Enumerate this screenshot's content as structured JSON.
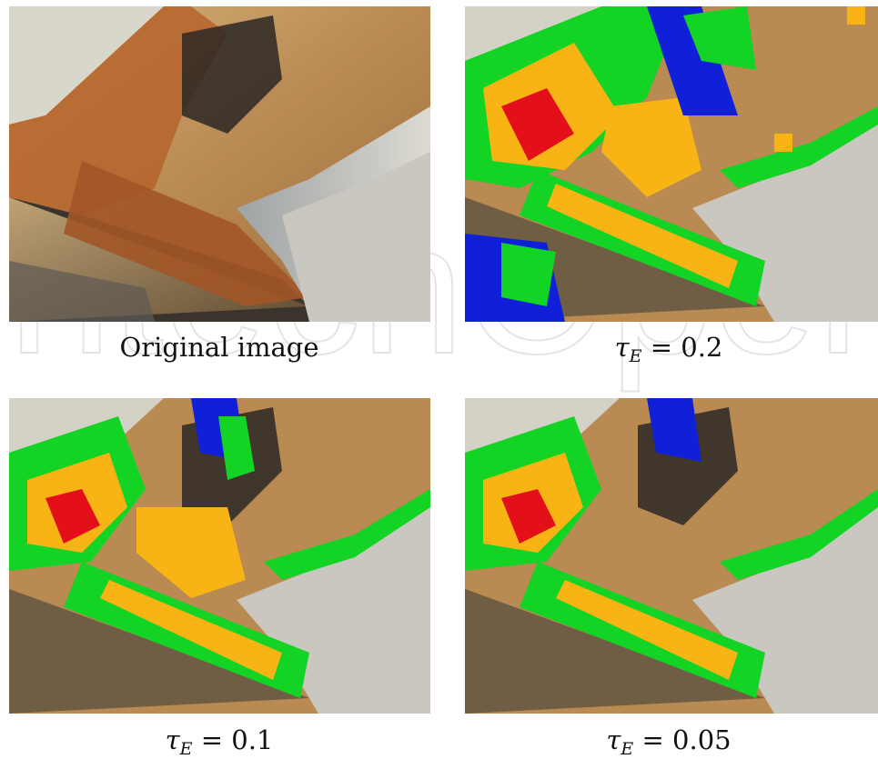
{
  "panels": [
    {
      "caption": "Original image",
      "kind": "original"
    },
    {
      "caption_symbol": "τ",
      "caption_sub": "E",
      "caption_rest": " = 0.2",
      "kind": "overlay"
    },
    {
      "caption_symbol": "τ",
      "caption_sub": "E",
      "caption_rest": " = 0.1",
      "kind": "overlay"
    },
    {
      "caption_symbol": "τ",
      "caption_sub": "E",
      "caption_rest": " = 0.05",
      "kind": "overlay"
    }
  ],
  "overlay_colors": {
    "high": "#e3101a",
    "mid_high": "#f8b414",
    "mid": "#13d324",
    "low": "#1020d8"
  },
  "image_colors": {
    "tan_surface": "#b98a52",
    "rust": "#b5642c",
    "grey_steel": "#c9c7c0",
    "dark_shadow": "#2b2724"
  },
  "watermark_text": "IntechOpen"
}
